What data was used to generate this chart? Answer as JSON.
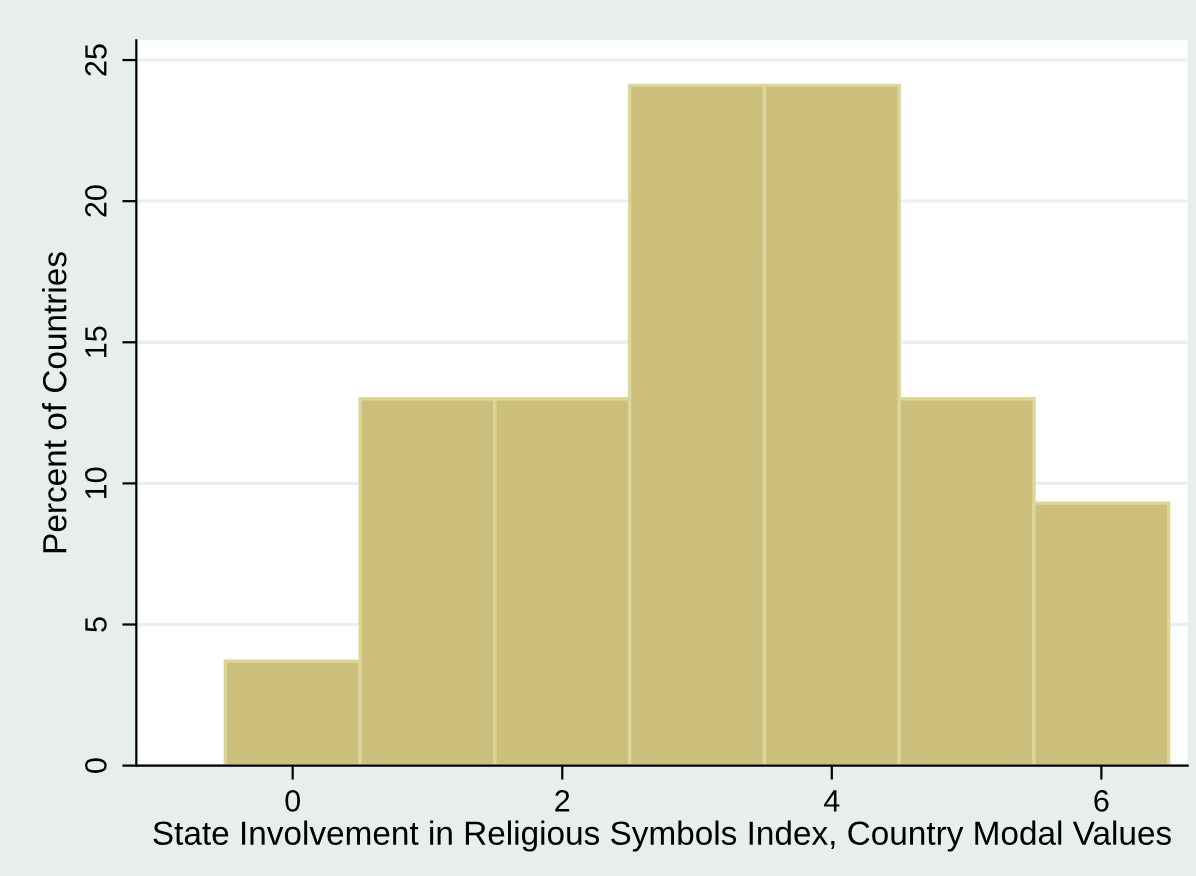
{
  "chart_data": {
    "type": "histogram",
    "xlabel": "State Involvement in Religious Symbols Index, Country Modal Values",
    "ylabel": "Percent of Countries",
    "bins": [
      -0.5,
      0.5,
      1.5,
      2.5,
      3.5,
      4.5,
      5.5,
      6.5
    ],
    "values": [
      3.7,
      13.0,
      13.0,
      24.1,
      24.1,
      13.0,
      9.3
    ],
    "color": "#cbbf7b",
    "xlim": [
      -1.16,
      6.64
    ],
    "xticks": [
      0,
      2,
      4,
      6
    ],
    "ylim": [
      0,
      25.7
    ],
    "yticks": [
      0,
      5,
      10,
      15,
      20,
      25
    ],
    "grid": "y",
    "legend": false
  }
}
